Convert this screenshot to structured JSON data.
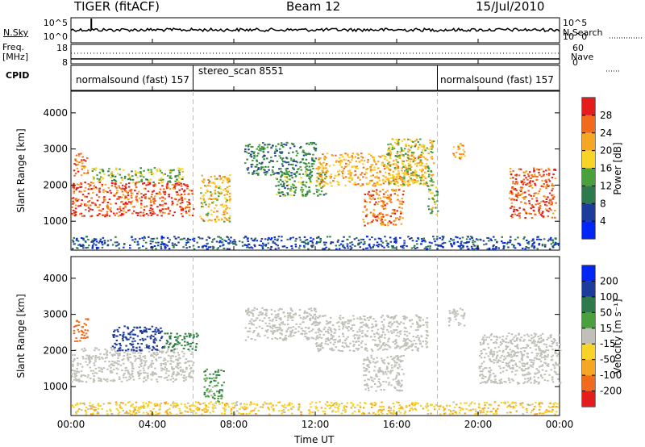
{
  "header": {
    "station": "TIGER (fitACF)",
    "beam": "Beam 12",
    "date": "15/Jul/2010"
  },
  "nsky_panel": {
    "label": "N.Sky",
    "right_label": "N.Search",
    "left_ticks": [
      "10^5",
      "10^0"
    ],
    "right_ticks": [
      "10^5",
      "10^0"
    ]
  },
  "freq_panel": {
    "label_line1": "Freq.",
    "label_line2": "[MHz]",
    "left_ticks": [
      "18",
      "8"
    ],
    "right_label": "Nave",
    "right_ticks": [
      "60",
      "0"
    ]
  },
  "cpid_panel": {
    "label": "CPID",
    "modes": [
      {
        "name": "normalsound (fast) 157",
        "start": 0,
        "end": 6
      },
      {
        "name": "stereo_scan 8551",
        "start": 6,
        "end": 18
      },
      {
        "name": "normalsound (fast) 157",
        "start": 18,
        "end": 24
      }
    ]
  },
  "x_axis": {
    "label": "Time UT",
    "ticks": [
      "00:00",
      "04:00",
      "08:00",
      "12:00",
      "16:00",
      "20:00",
      "00:00"
    ]
  },
  "colors": {
    "axis": "#000000",
    "mode_change": "#bbbbbb",
    "ground_scatter": "#c0c0b8"
  },
  "chart_data": [
    {
      "type": "heatmap",
      "name": "power",
      "ylabel": "Slant Range [km]",
      "yticks": [
        "4000",
        "3000",
        "2000",
        "1000"
      ],
      "ylim": [
        200,
        4600
      ],
      "xlim_hours": [
        0,
        24
      ],
      "colorbar": {
        "label": "Power [dB]",
        "ticks": [
          "28",
          "24",
          "20",
          "16",
          "12",
          "8",
          "4"
        ],
        "colors": [
          "#0026f5",
          "#1d3b9b",
          "#2f7a4d",
          "#49a03d",
          "#f8d328",
          "#f5a723",
          "#f06b1c",
          "#e41c1c"
        ]
      },
      "regions": [
        {
          "t": [
            0.0,
            6.0
          ],
          "r": [
            1150,
            2100
          ],
          "level": 26
        },
        {
          "t": [
            0.1,
            0.8
          ],
          "r": [
            2250,
            2900
          ],
          "level": 24
        },
        {
          "t": [
            1.0,
            5.5
          ],
          "r": [
            2100,
            2500
          ],
          "level": 14
        },
        {
          "t": [
            6.3,
            7.8
          ],
          "r": [
            1000,
            2300
          ],
          "level": 18
        },
        {
          "t": [
            8.5,
            12.0
          ],
          "r": [
            2300,
            3200
          ],
          "level": 10
        },
        {
          "t": [
            10.0,
            12.5
          ],
          "r": [
            1700,
            2400
          ],
          "level": 12
        },
        {
          "t": [
            12.0,
            17.5
          ],
          "r": [
            2000,
            2900
          ],
          "level": 20
        },
        {
          "t": [
            14.3,
            16.3
          ],
          "r": [
            900,
            1900
          ],
          "level": 24
        },
        {
          "t": [
            15.5,
            17.8
          ],
          "r": [
            2000,
            3300
          ],
          "level": 16
        },
        {
          "t": [
            17.5,
            18.0
          ],
          "r": [
            1200,
            2000
          ],
          "level": 14
        },
        {
          "t": [
            18.7,
            19.3
          ],
          "r": [
            2700,
            3200
          ],
          "level": 20
        },
        {
          "t": [
            21.5,
            23.8
          ],
          "r": [
            1100,
            2500
          ],
          "level": 26
        },
        {
          "t": [
            0.0,
            24.0
          ],
          "r": [
            250,
            600
          ],
          "level": 6
        }
      ]
    },
    {
      "type": "heatmap",
      "name": "velocity",
      "ylabel": "Slant Range [km]",
      "yticks": [
        "4000",
        "3000",
        "2000",
        "1000"
      ],
      "ylim": [
        200,
        4600
      ],
      "xlim_hours": [
        0,
        24
      ],
      "colorbar": {
        "label": "Velocity [m s⁻¹]",
        "ticks": [
          "200",
          "100",
          "50",
          "15",
          "-15",
          "-50",
          "-100",
          "-200"
        ],
        "colors": [
          "#e41c1c",
          "#f06b1c",
          "#f5a723",
          "#f8d328",
          "#c0c0b8",
          "#49a03d",
          "#2f7a4d",
          "#1d3b9b",
          "#0026f5"
        ]
      },
      "regions": [
        {
          "t": [
            0.0,
            6.0
          ],
          "r": [
            1150,
            2100
          ],
          "level": 0
        },
        {
          "t": [
            0.1,
            0.8
          ],
          "r": [
            2250,
            2900
          ],
          "level": -180
        },
        {
          "t": [
            2.0,
            4.5
          ],
          "r": [
            2000,
            2700
          ],
          "level": 180
        },
        {
          "t": [
            4.5,
            6.2
          ],
          "r": [
            2000,
            2500
          ],
          "level": 60
        },
        {
          "t": [
            6.5,
            7.5
          ],
          "r": [
            600,
            1500
          ],
          "level": 40
        },
        {
          "t": [
            8.5,
            12.0
          ],
          "r": [
            2300,
            3200
          ],
          "level": 0
        },
        {
          "t": [
            12.0,
            17.5
          ],
          "r": [
            2000,
            3000
          ],
          "level": 0
        },
        {
          "t": [
            14.3,
            16.3
          ],
          "r": [
            900,
            1900
          ],
          "level": 0
        },
        {
          "t": [
            18.5,
            19.3
          ],
          "r": [
            2700,
            3200
          ],
          "level": 0
        },
        {
          "t": [
            20.0,
            24.0
          ],
          "r": [
            1100,
            2500
          ],
          "level": 0
        },
        {
          "t": [
            0.0,
            24.0
          ],
          "r": [
            250,
            600
          ],
          "level": -40
        }
      ]
    }
  ]
}
